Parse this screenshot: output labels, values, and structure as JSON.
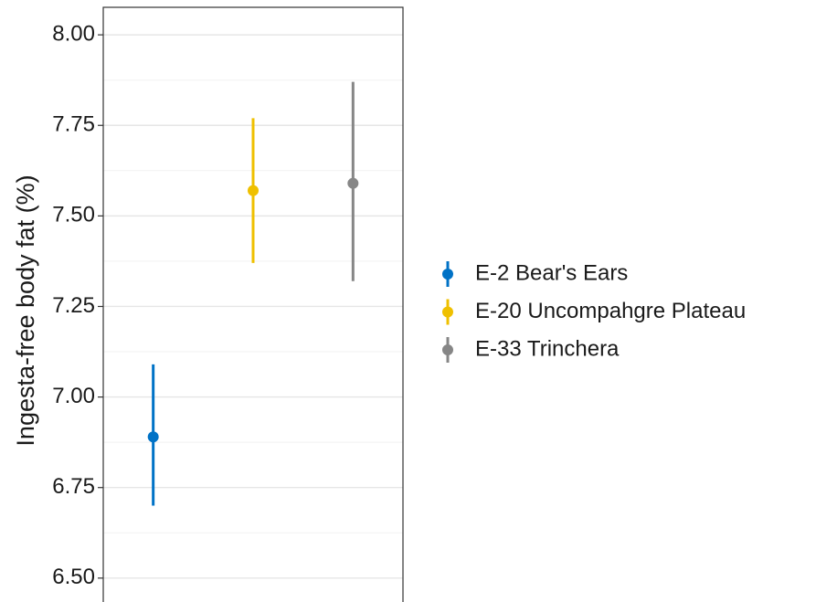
{
  "chart_data": {
    "type": "pointrange",
    "y_label": "Ingesta-free body fat (%)",
    "ylim": [
      6.434,
      8.076
    ],
    "yticks": [
      {
        "value": 6.5,
        "label": "6.50"
      },
      {
        "value": 6.75,
        "label": "6.75"
      },
      {
        "value": 7.0,
        "label": "7.00"
      },
      {
        "value": 7.25,
        "label": "7.25"
      },
      {
        "value": 7.5,
        "label": "7.50"
      },
      {
        "value": 7.75,
        "label": "7.75"
      },
      {
        "value": 8.0,
        "label": "8.00"
      }
    ],
    "grid": true,
    "legend": "right",
    "series": [
      {
        "name": "E-2 Bear's Ears",
        "color": "#0072c6",
        "values": [
          6.89
        ],
        "lower": [
          6.7
        ],
        "upper": [
          7.09
        ]
      },
      {
        "name": "E-20 Uncompahgre Plateau",
        "color": "#efc000",
        "values": [
          7.57
        ],
        "lower": [
          7.37
        ],
        "upper": [
          7.77
        ]
      },
      {
        "name": "E-33 Trinchera",
        "color": "#868686",
        "values": [
          7.59
        ],
        "lower": [
          7.32
        ],
        "upper": [
          7.87
        ]
      }
    ]
  }
}
